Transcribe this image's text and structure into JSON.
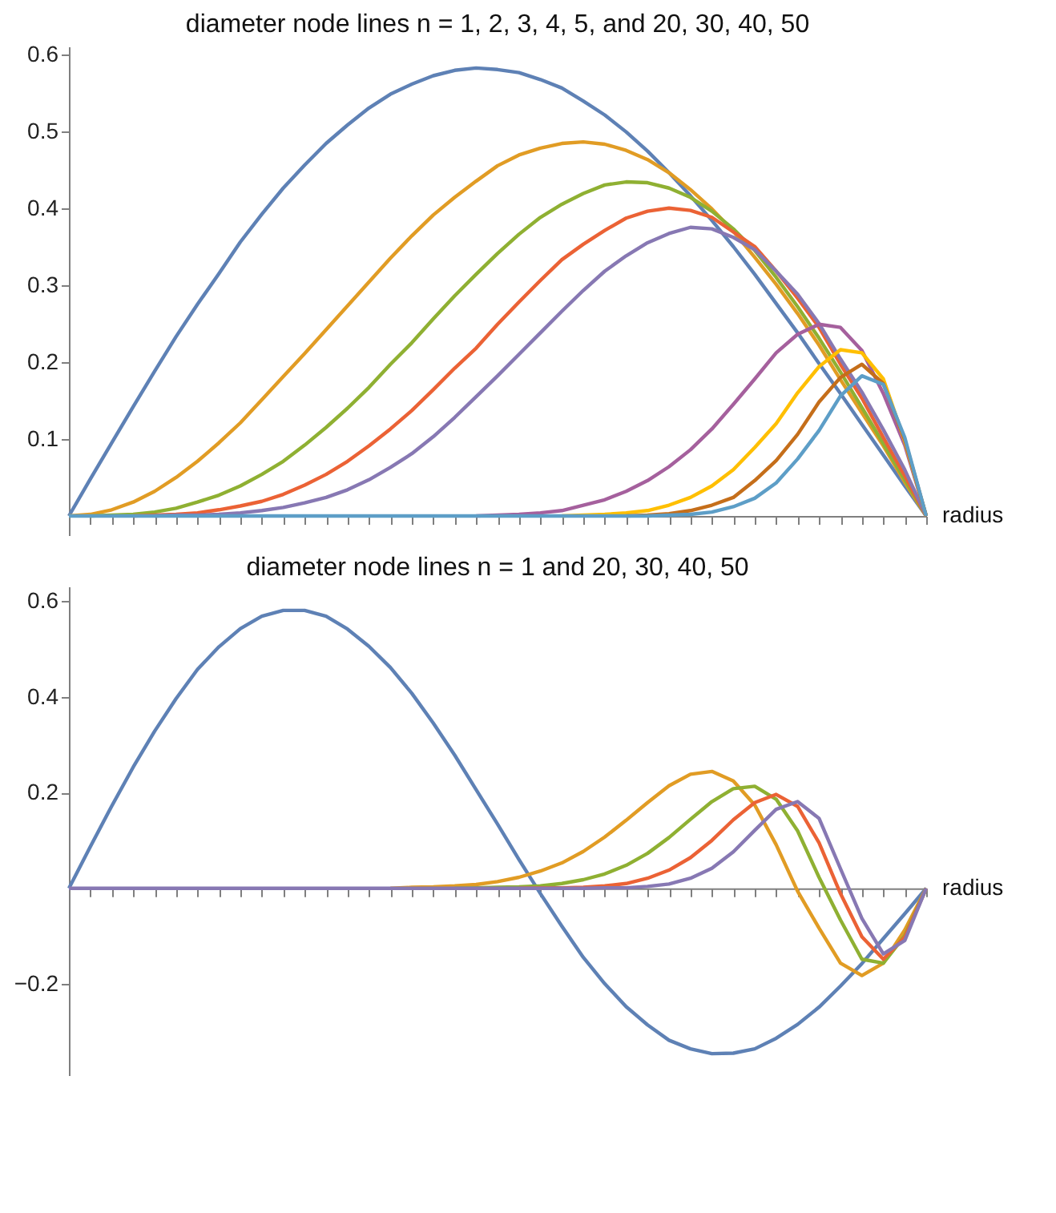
{
  "chart_data": [
    {
      "type": "line",
      "title": "diameter node lines n = 1, 2, 3, 4, 5, and 20, 30, 40, 50",
      "xlabel": "radius",
      "tick_labels": "y",
      "ylim": [
        -0.025,
        0.61
      ],
      "yticks": [
        0.1,
        0.2,
        0.3,
        0.4,
        0.5,
        0.6
      ],
      "categories": [
        null,
        null,
        null,
        null,
        null,
        null,
        null,
        null,
        null,
        null,
        null,
        null,
        null,
        null,
        null,
        null,
        null,
        null,
        null,
        null,
        null,
        null,
        null,
        null,
        null,
        null,
        null,
        null,
        null,
        null,
        null,
        null,
        null,
        null,
        null,
        null,
        null,
        null,
        null,
        null,
        null
      ],
      "series": [
        {
          "color": "#5e81b5",
          "values": [
            0,
            0.048,
            0.095,
            0.142,
            0.188,
            0.233,
            0.275,
            0.315,
            0.356,
            0.392,
            0.426,
            0.456,
            0.484,
            0.508,
            0.53,
            0.548,
            0.561,
            0.572,
            0.579,
            0.582,
            0.58,
            0.576,
            0.567,
            0.556,
            0.539,
            0.521,
            0.499,
            0.474,
            0.446,
            0.416,
            0.384,
            0.35,
            0.314,
            0.276,
            0.238,
            0.198,
            0.159,
            0.119,
            0.079,
            0.039,
            0
          ]
        },
        {
          "color": "#e19c24",
          "values": [
            0,
            0.002,
            0.008,
            0.018,
            0.032,
            0.05,
            0.071,
            0.095,
            0.121,
            0.151,
            0.181,
            0.211,
            0.242,
            0.273,
            0.304,
            0.335,
            0.364,
            0.391,
            0.414,
            0.435,
            0.455,
            0.469,
            0.478,
            0.484,
            0.486,
            0.483,
            0.475,
            0.463,
            0.446,
            0.424,
            0.399,
            0.37,
            0.336,
            0.301,
            0.263,
            0.222,
            0.177,
            0.134,
            0.091,
            0.044,
            0
          ]
        },
        {
          "color": "#8fb032",
          "values": [
            null,
            0,
            0.001,
            0.002,
            0.005,
            0.01,
            0.018,
            0.027,
            0.039,
            0.054,
            0.071,
            0.092,
            0.115,
            0.14,
            0.167,
            0.197,
            0.225,
            0.256,
            0.286,
            0.314,
            0.341,
            0.366,
            0.388,
            0.405,
            0.419,
            0.43,
            0.434,
            0.433,
            0.426,
            0.414,
            0.396,
            0.373,
            0.345,
            0.31,
            0.272,
            0.231,
            0.187,
            0.141,
            0.094,
            0.047,
            0
          ]
        },
        {
          "color": "#eb6235",
          "values": [
            null,
            null,
            null,
            0,
            0.001,
            0.002,
            0.004,
            0.008,
            0.013,
            0.019,
            0.028,
            0.04,
            0.054,
            0.071,
            0.091,
            0.113,
            0.137,
            0.164,
            0.192,
            0.218,
            0.249,
            0.278,
            0.306,
            0.333,
            0.353,
            0.371,
            0.387,
            0.396,
            0.4,
            0.397,
            0.388,
            0.369,
            0.35,
            0.318,
            0.283,
            0.245,
            0.197,
            0.153,
            0.102,
            0.052,
            0
          ]
        },
        {
          "color": "#8778b3",
          "values": [
            null,
            null,
            null,
            null,
            0,
            0.001,
            0.001,
            0.002,
            0.004,
            0.007,
            0.011,
            0.017,
            0.024,
            0.034,
            0.047,
            0.063,
            0.081,
            0.103,
            0.128,
            0.155,
            0.182,
            0.21,
            0.238,
            0.266,
            0.293,
            0.318,
            0.338,
            0.355,
            0.367,
            0.375,
            0.373,
            0.362,
            0.346,
            0.318,
            0.288,
            0.25,
            0.204,
            0.161,
            0.112,
            0.06,
            0
          ]
        },
        {
          "color": "#a5609d",
          "values": [
            null,
            null,
            null,
            null,
            null,
            null,
            null,
            null,
            null,
            null,
            null,
            null,
            null,
            null,
            null,
            null,
            null,
            null,
            null,
            0,
            0.001,
            0.002,
            0.004,
            0.007,
            0.014,
            0.021,
            0.032,
            0.046,
            0.064,
            0.086,
            0.113,
            0.145,
            0.178,
            0.212,
            0.236,
            0.249,
            0.245,
            0.215,
            0.159,
            0.092,
            0
          ]
        },
        {
          "color": "#ffbf00",
          "values": [
            null,
            null,
            null,
            null,
            null,
            null,
            null,
            null,
            null,
            null,
            null,
            null,
            null,
            null,
            null,
            null,
            null,
            null,
            null,
            null,
            null,
            null,
            null,
            0,
            0.001,
            0.002,
            0.004,
            0.007,
            0.014,
            0.024,
            0.039,
            0.06,
            0.089,
            0.12,
            0.16,
            0.194,
            0.216,
            0.212,
            0.178,
            0.097,
            0
          ]
        },
        {
          "color": "#c56e1a",
          "values": [
            null,
            null,
            null,
            null,
            null,
            null,
            null,
            null,
            null,
            null,
            null,
            null,
            null,
            null,
            null,
            null,
            null,
            null,
            null,
            null,
            null,
            null,
            null,
            null,
            null,
            null,
            0,
            0.001,
            0.003,
            0.007,
            0.014,
            0.024,
            0.046,
            0.072,
            0.106,
            0.148,
            0.18,
            0.197,
            0.172,
            0.099,
            0
          ]
        },
        {
          "color": "#5d9ec7",
          "values": [
            0,
            0,
            0,
            0,
            0,
            0,
            0,
            0,
            0,
            0,
            0,
            0,
            0,
            0,
            0,
            0,
            0,
            0,
            0,
            0,
            0,
            0,
            0,
            0,
            0,
            0,
            0,
            0,
            0.001,
            0.002,
            0.005,
            0.012,
            0.023,
            0.043,
            0.074,
            0.111,
            0.156,
            0.182,
            0.171,
            0.102,
            0
          ]
        }
      ]
    },
    {
      "type": "line",
      "title": "diameter node lines n = 1 and 20, 30, 40, 50",
      "xlabel": "radius",
      "tick_labels": "y",
      "ylim": [
        -0.39,
        0.63
      ],
      "yticks": [
        -0.2,
        0.2,
        0.4,
        0.6
      ],
      "categories": [
        null,
        null,
        null,
        null,
        null,
        null,
        null,
        null,
        null,
        null,
        null,
        null,
        null,
        null,
        null,
        null,
        null,
        null,
        null,
        null,
        null,
        null,
        null,
        null,
        null,
        null,
        null,
        null,
        null,
        null,
        null,
        null,
        null,
        null,
        null,
        null,
        null,
        null,
        null,
        null,
        null
      ],
      "series": [
        {
          "color": "#5e81b5",
          "values": [
            0,
            0.087,
            0.172,
            0.253,
            0.328,
            0.396,
            0.457,
            0.504,
            0.542,
            0.568,
            0.58,
            0.58,
            0.568,
            0.541,
            0.505,
            0.461,
            0.407,
            0.345,
            0.278,
            0.206,
            0.134,
            0.06,
            -0.011,
            -0.079,
            -0.144,
            -0.199,
            -0.247,
            -0.285,
            -0.317,
            -0.335,
            -0.345,
            -0.344,
            -0.335,
            -0.313,
            -0.284,
            -0.248,
            -0.204,
            -0.157,
            -0.105,
            -0.053,
            0
          ]
        },
        {
          "color": "#e19c24",
          "values": [
            null,
            null,
            null,
            null,
            null,
            null,
            null,
            null,
            null,
            null,
            null,
            null,
            null,
            null,
            null,
            0,
            0.002,
            0.003,
            0.005,
            0.008,
            0.014,
            0.023,
            0.036,
            0.053,
            0.077,
            0.107,
            0.142,
            0.179,
            0.214,
            0.238,
            0.244,
            0.224,
            0.174,
            0.091,
            -0.006,
            -0.083,
            -0.156,
            -0.182,
            -0.156,
            -0.087,
            0
          ]
        },
        {
          "color": "#8fb032",
          "values": [
            null,
            null,
            null,
            null,
            null,
            null,
            null,
            null,
            null,
            null,
            null,
            null,
            null,
            null,
            null,
            null,
            null,
            null,
            0,
            0.001,
            0.002,
            0.003,
            0.005,
            0.01,
            0.018,
            0.03,
            0.048,
            0.073,
            0.106,
            0.144,
            0.181,
            0.208,
            0.213,
            0.186,
            0.12,
            0.023,
            -0.066,
            -0.148,
            -0.156,
            -0.099,
            0
          ]
        },
        {
          "color": "#eb6235",
          "values": [
            null,
            null,
            null,
            null,
            null,
            null,
            null,
            null,
            null,
            null,
            null,
            null,
            null,
            null,
            null,
            null,
            null,
            null,
            null,
            null,
            null,
            0,
            0.001,
            0.001,
            0.002,
            0.005,
            0.01,
            0.021,
            0.038,
            0.064,
            0.1,
            0.143,
            0.179,
            0.196,
            0.171,
            0.095,
            -0.011,
            -0.101,
            -0.148,
            -0.102,
            0
          ]
        },
        {
          "color": "#8778b3",
          "values": [
            0,
            0,
            0,
            0,
            0,
            0,
            0,
            0,
            0,
            0,
            0,
            0,
            0,
            0,
            0,
            0,
            0,
            0,
            0,
            0,
            0,
            0,
            0,
            0,
            0,
            0.001,
            0.001,
            0.004,
            0.009,
            0.021,
            0.042,
            0.076,
            0.121,
            0.165,
            0.181,
            0.146,
            0.041,
            -0.063,
            -0.137,
            -0.109,
            0
          ]
        }
      ]
    }
  ]
}
